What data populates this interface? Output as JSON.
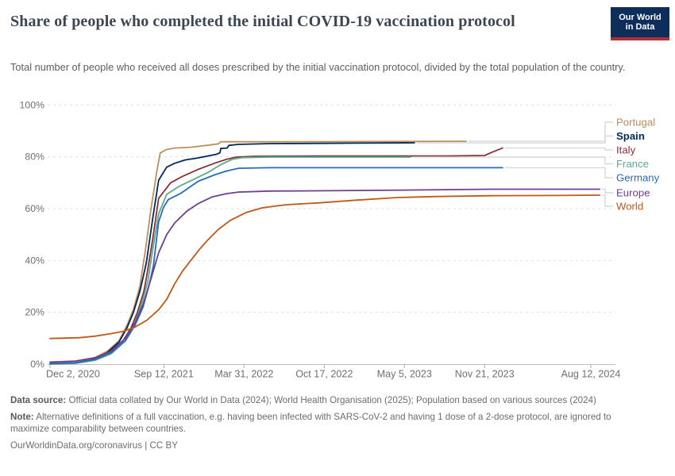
{
  "header": {
    "title": "Share of people who completed the initial COVID-19 vaccination protocol",
    "subtitle": "Total number of people who received all doses prescribed by the initial vaccination protocol, divided by the total population of the country.",
    "logo": {
      "line1": "Our World",
      "line2": "in Data",
      "bg_color": "#0d2e5b",
      "accent_color": "#b02e35"
    }
  },
  "footer": {
    "datasource_label": "Data source:",
    "datasource_text": " Official data collated by Our World in Data (2024); World Health Organisation (2025); Population based on various sources (2024)",
    "note_label": "Note:",
    "note_text": " Alternative definitions of a full vaccination, e.g. having been infected with SARS-CoV-2 and having 1 dose of a 2-dose protocol, are ignored to maximize comparability between countries.",
    "link": "OurWorldinData.org/coronavirus",
    "separator": " | ",
    "license": "CC BY"
  },
  "chart_data": {
    "type": "line",
    "title": "Share of people who completed the initial COVID-19 vaccination protocol",
    "xlabel": "",
    "ylabel": "",
    "x_unit": "days since Dec 2, 2020",
    "ylim": [
      0,
      100
    ],
    "grid": "horizontal-dashed",
    "legend_position": "right",
    "y_ticks": [
      {
        "label": "0%",
        "value": 0
      },
      {
        "label": "20%",
        "value": 20
      },
      {
        "label": "40%",
        "value": 40
      },
      {
        "label": "60%",
        "value": 60
      },
      {
        "label": "80%",
        "value": 80
      },
      {
        "label": "100%",
        "value": 100
      }
    ],
    "x_ticks": [
      {
        "label": "Dec 2, 2020",
        "day": 0
      },
      {
        "label": "Sep 12, 2021",
        "day": 284
      },
      {
        "label": "Mar 31, 2022",
        "day": 484
      },
      {
        "label": "Oct 17, 2022",
        "day": 684
      },
      {
        "label": "May 5, 2023",
        "day": 884
      },
      {
        "label": "Nov 21, 2023",
        "day": 1084
      },
      {
        "label": "Aug 12, 2024",
        "day": 1349
      }
    ],
    "axis_colors": {
      "grid": "#dedede",
      "axis": "#bdbdbd",
      "tick": "#a9a9a9",
      "label": "#6f6f6f",
      "connector": "#d9d9d9"
    },
    "series": [
      {
        "name": "Portugal",
        "color": "#BC8E5A",
        "bold": false,
        "points": [
          [
            0,
            0.3
          ],
          [
            63,
            0.6
          ],
          [
            103,
            1.8
          ],
          [
            143,
            5
          ],
          [
            172,
            9
          ],
          [
            192,
            15
          ],
          [
            208,
            21
          ],
          [
            224,
            30
          ],
          [
            238,
            44
          ],
          [
            252,
            60
          ],
          [
            267,
            75
          ],
          [
            275,
            81.5
          ],
          [
            290,
            82.8
          ],
          [
            311,
            83.4
          ],
          [
            351,
            83.7
          ],
          [
            390,
            84.4
          ],
          [
            420,
            85.0
          ],
          [
            426,
            85.8
          ],
          [
            460,
            85.8
          ],
          [
            600,
            85.8
          ],
          [
            800,
            85.9
          ],
          [
            1038,
            86.0
          ]
        ]
      },
      {
        "name": "Spain",
        "color": "#00295B",
        "bold": true,
        "points": [
          [
            0,
            0.2
          ],
          [
            63,
            0.5
          ],
          [
            103,
            1.6
          ],
          [
            143,
            4.5
          ],
          [
            172,
            8.5
          ],
          [
            192,
            14
          ],
          [
            208,
            20
          ],
          [
            224,
            28
          ],
          [
            240,
            39
          ],
          [
            256,
            56
          ],
          [
            271,
            71
          ],
          [
            291,
            76
          ],
          [
            311,
            77.5
          ],
          [
            337,
            78.8
          ],
          [
            370,
            79.6
          ],
          [
            416,
            81.0
          ],
          [
            424,
            81.6
          ],
          [
            426,
            83.2
          ],
          [
            442,
            83.4
          ],
          [
            446,
            84.4
          ],
          [
            469,
            84.8
          ],
          [
            549,
            85.1
          ],
          [
            668,
            85.2
          ],
          [
            767,
            85.3
          ],
          [
            909,
            85.4
          ]
        ]
      },
      {
        "name": "Italy",
        "color": "#883039",
        "bold": false,
        "points": [
          [
            0,
            0.1
          ],
          [
            63,
            0.4
          ],
          [
            103,
            1.5
          ],
          [
            143,
            4
          ],
          [
            182,
            9
          ],
          [
            202,
            14
          ],
          [
            218,
            20
          ],
          [
            234,
            28
          ],
          [
            240,
            33
          ],
          [
            256,
            48
          ],
          [
            271,
            64
          ],
          [
            301,
            70
          ],
          [
            331,
            72.5
          ],
          [
            370,
            75.2
          ],
          [
            410,
            77.5
          ],
          [
            440,
            79
          ],
          [
            464,
            79.9
          ],
          [
            509,
            80.2
          ],
          [
            668,
            80.3
          ],
          [
            984,
            80.3
          ],
          [
            1084,
            80.5
          ],
          [
            1103,
            81.8
          ],
          [
            1129,
            83.4
          ]
        ]
      },
      {
        "name": "France",
        "color": "#58AC8C",
        "bold": false,
        "points": [
          [
            0,
            0.1
          ],
          [
            63,
            0.3
          ],
          [
            113,
            1.5
          ],
          [
            153,
            4
          ],
          [
            188,
            9
          ],
          [
            212,
            16
          ],
          [
            228,
            23
          ],
          [
            244,
            32
          ],
          [
            256,
            44
          ],
          [
            271,
            58
          ],
          [
            291,
            65.5
          ],
          [
            321,
            68.5
          ],
          [
            361,
            71.5
          ],
          [
            394,
            74
          ],
          [
            426,
            77
          ],
          [
            454,
            79
          ],
          [
            479,
            79.7
          ],
          [
            549,
            79.9
          ],
          [
            899,
            79.9
          ]
        ]
      },
      {
        "name": "Germany",
        "color": "#286BBB",
        "bold": false,
        "points": [
          [
            0,
            0.2
          ],
          [
            63,
            0.5
          ],
          [
            113,
            1.8
          ],
          [
            153,
            4.5
          ],
          [
            188,
            9
          ],
          [
            212,
            15
          ],
          [
            232,
            22
          ],
          [
            248,
            31
          ],
          [
            258,
            38
          ],
          [
            271,
            55
          ],
          [
            283,
            60.5
          ],
          [
            295,
            63.5
          ],
          [
            327,
            66
          ],
          [
            370,
            70.6
          ],
          [
            410,
            73
          ],
          [
            440,
            74.5
          ],
          [
            470,
            75.6
          ],
          [
            549,
            75.8
          ],
          [
            900,
            75.8
          ],
          [
            1129,
            75.8
          ]
        ]
      },
      {
        "name": "Europe",
        "color": "#6D3E91",
        "bold": false,
        "points": [
          [
            0,
            0.8
          ],
          [
            63,
            1.2
          ],
          [
            113,
            2.5
          ],
          [
            153,
            5
          ],
          [
            188,
            10
          ],
          [
            212,
            16
          ],
          [
            232,
            23
          ],
          [
            252,
            33
          ],
          [
            271,
            43
          ],
          [
            291,
            50
          ],
          [
            311,
            54.5
          ],
          [
            341,
            59
          ],
          [
            370,
            62
          ],
          [
            404,
            64.5
          ],
          [
            440,
            65.8
          ],
          [
            470,
            66.4
          ],
          [
            549,
            66.8
          ],
          [
            668,
            66.9
          ],
          [
            905,
            67.2
          ],
          [
            1103,
            67.5
          ],
          [
            1250,
            67.5
          ],
          [
            1371,
            67.5
          ]
        ]
      },
      {
        "name": "World",
        "color": "#C05917",
        "bold": false,
        "points": [
          [
            0,
            9.9
          ],
          [
            73,
            10.2
          ],
          [
            113,
            10.8
          ],
          [
            153,
            11.8
          ],
          [
            182,
            12.6
          ],
          [
            212,
            14.3
          ],
          [
            242,
            17
          ],
          [
            271,
            21
          ],
          [
            291,
            25
          ],
          [
            311,
            31
          ],
          [
            331,
            36
          ],
          [
            351,
            40
          ],
          [
            374,
            44.5
          ],
          [
            394,
            48
          ],
          [
            420,
            52
          ],
          [
            450,
            55.5
          ],
          [
            489,
            58.5
          ],
          [
            529,
            60.3
          ],
          [
            588,
            61.5
          ],
          [
            668,
            62.2
          ],
          [
            767,
            63.3
          ],
          [
            866,
            64.3
          ],
          [
            965,
            64.7
          ],
          [
            1103,
            65.0
          ],
          [
            1262,
            65.1
          ],
          [
            1371,
            65.2
          ]
        ]
      }
    ]
  }
}
